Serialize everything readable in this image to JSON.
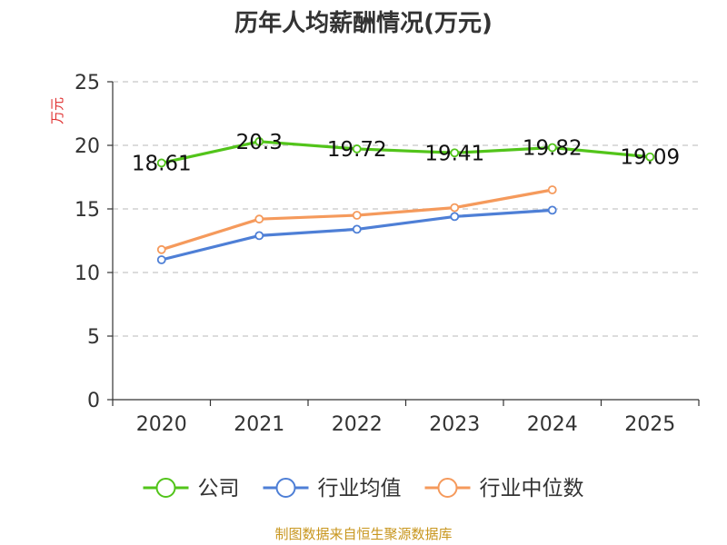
{
  "chart_data": {
    "type": "line",
    "title": "历年人均薪酬情况(万元)",
    "ylabel": "万元",
    "xlabel": "",
    "categories": [
      "2020",
      "2021",
      "2022",
      "2023",
      "2024",
      "2025"
    ],
    "ylim": [
      0,
      25
    ],
    "yticks": [
      0,
      5,
      10,
      15,
      20,
      25
    ],
    "grid": true,
    "legend_position": "bottom",
    "series": [
      {
        "name": "公司",
        "color": "#52c41a",
        "show_labels": true,
        "values": [
          18.61,
          20.3,
          19.72,
          19.41,
          19.82,
          19.09
        ]
      },
      {
        "name": "行业均值",
        "color": "#4e7fd6",
        "show_labels": false,
        "values": [
          11.0,
          12.9,
          13.4,
          14.4,
          14.9,
          null
        ]
      },
      {
        "name": "行业中位数",
        "color": "#f59a5c",
        "show_labels": false,
        "values": [
          11.8,
          14.2,
          14.5,
          15.1,
          16.5,
          null
        ]
      }
    ]
  },
  "source": "制图数据来自恒生聚源数据库"
}
